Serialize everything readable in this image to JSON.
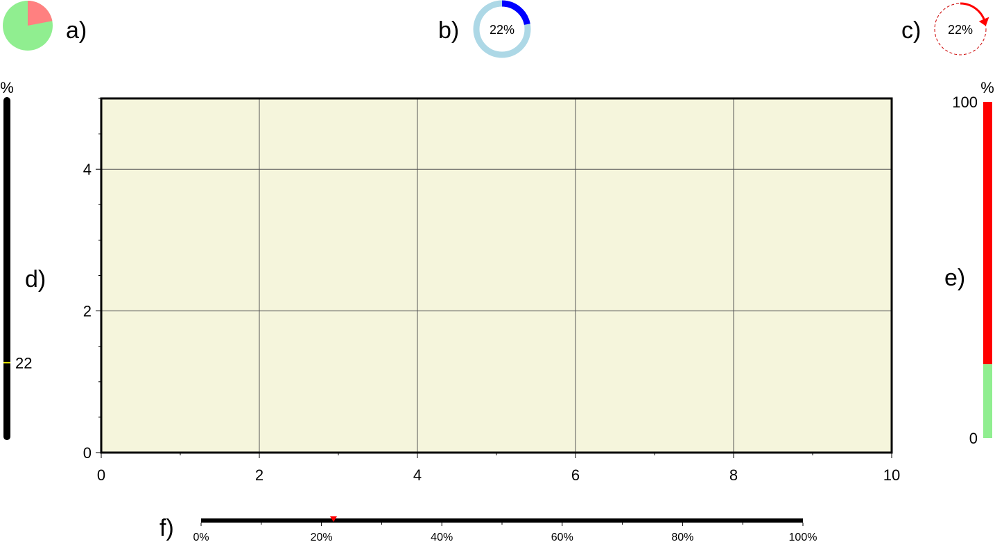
{
  "panels": {
    "a": {
      "label": "a)",
      "percent": 22,
      "colors": {
        "remaining": "#90ee90",
        "progress": "#ff8080"
      }
    },
    "b": {
      "label": "b)",
      "percent": 22,
      "text": "22%",
      "colors": {
        "ring": "#add8e6",
        "progress": "#0000ff"
      }
    },
    "c": {
      "label": "c)",
      "percent": 22,
      "text": "22%",
      "colors": {
        "circle": "#cc0000",
        "arrow": "#ff0000"
      }
    },
    "d": {
      "label": "d)",
      "unit": "%",
      "percent": 22,
      "marker_label": "22",
      "colors": {
        "bar": "#000000",
        "marker": "#ffff00"
      }
    },
    "e": {
      "label": "e)",
      "unit": "%",
      "percent": 22,
      "max_label": "100",
      "min_label": "0",
      "colors": {
        "progress": "#90ee90",
        "remaining": "#ff0000"
      }
    },
    "f": {
      "label": "f)",
      "percent": 22,
      "tick_labels": [
        "0%",
        "20%",
        "40%",
        "60%",
        "80%",
        "100%"
      ],
      "colors": {
        "bar": "#000000",
        "marker": "#ff0000"
      }
    }
  },
  "chart_data": {
    "type": "scatter",
    "title": "",
    "xlabel": "",
    "ylabel": "",
    "xlim": [
      0,
      10
    ],
    "ylim": [
      0,
      5
    ],
    "x_ticks": [
      0,
      2,
      4,
      6,
      8,
      10
    ],
    "y_ticks": [
      0,
      2,
      4
    ],
    "x_tick_labels": [
      "0",
      "2",
      "4",
      "6",
      "8",
      "10"
    ],
    "y_tick_labels": [
      "0",
      "2",
      "4"
    ],
    "grid": true,
    "background": "#f5f5dc",
    "series": []
  }
}
